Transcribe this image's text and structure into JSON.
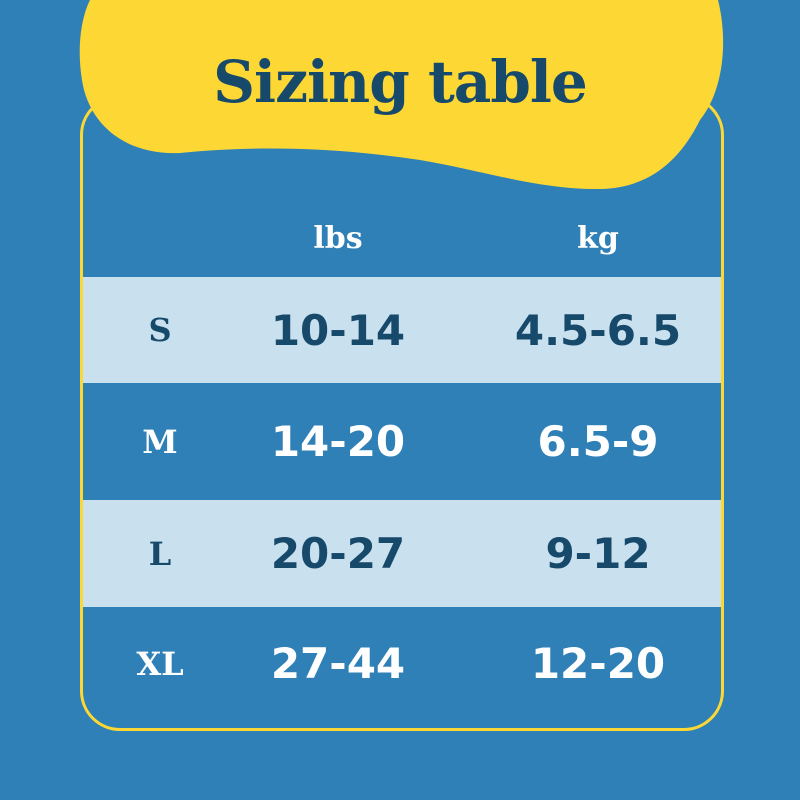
{
  "title": "Sizing table",
  "colors": {
    "background": "#2f80b6",
    "accent": "#fdd835",
    "text_dark": "#17496b",
    "row_light": "#c9e0ee"
  },
  "headers": [
    "",
    "lbs",
    "kg"
  ],
  "rows": [
    {
      "size": "S",
      "lbs": "10-14",
      "kg": "4.5-6.5"
    },
    {
      "size": "M",
      "lbs": "14-20",
      "kg": "6.5-9"
    },
    {
      "size": "L",
      "lbs": "20-27",
      "kg": "9-12"
    },
    {
      "size": "XL",
      "lbs": "27-44",
      "kg": "12-20"
    }
  ]
}
